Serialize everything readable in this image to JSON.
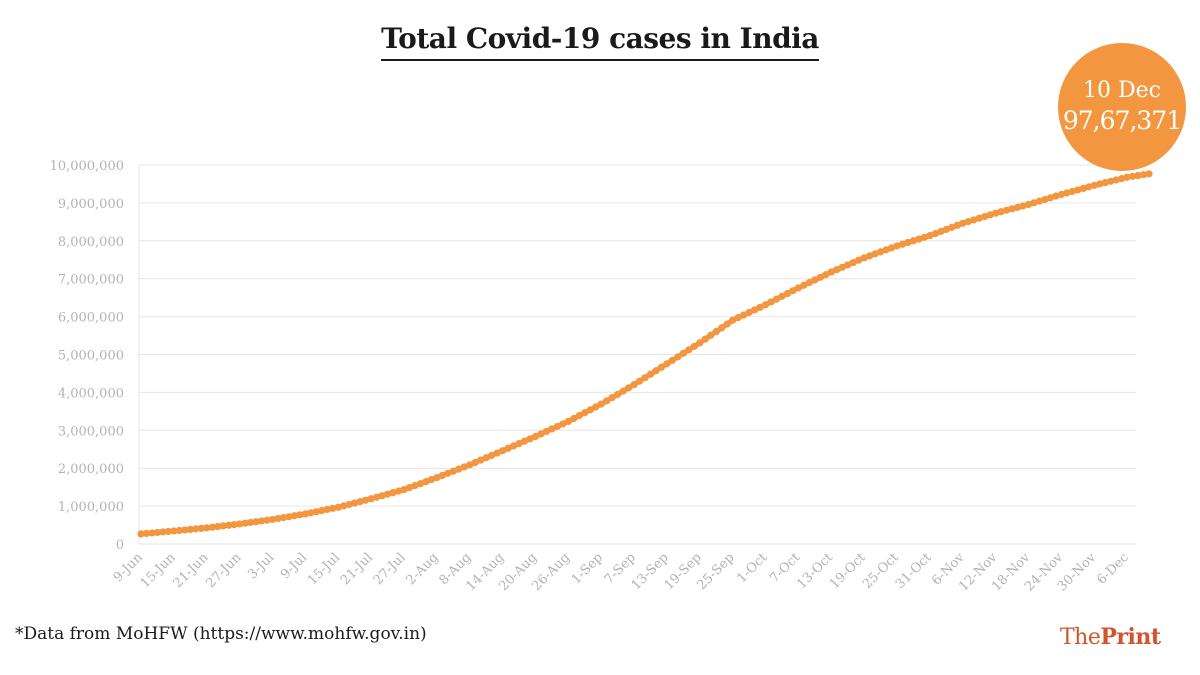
{
  "title": "Total Covid-19 cases in India",
  "badge": {
    "date": "10 Dec",
    "value": "97,67,371"
  },
  "footnote": "*Data from MoHFW (https://www.mohfw.gov.in)",
  "brand": {
    "prefix": "The",
    "name": "Print"
  },
  "colors": {
    "line": "#f2963f",
    "grid": "#e6e6e6",
    "axis_text": "#b3b3b3",
    "brand": "#d2542c"
  },
  "chart_data": {
    "type": "line",
    "title": "Total Covid-19 cases in India",
    "xlabel": "",
    "ylabel": "",
    "ylim": [
      0,
      10000000
    ],
    "y_ticks": [
      0,
      1000000,
      2000000,
      3000000,
      4000000,
      5000000,
      6000000,
      7000000,
      8000000,
      9000000,
      10000000
    ],
    "y_tick_labels": [
      "0",
      "1,000,000",
      "2,000,000",
      "3,000,000",
      "4,000,000",
      "5,000,000",
      "6,000,000",
      "7,000,000",
      "8,000,000",
      "9,000,000",
      "10,000,000"
    ],
    "x_tick_labels": [
      "9-Jun",
      "15-Jun",
      "21-Jun",
      "27-Jun",
      "3-Jul",
      "9-Jul",
      "15-Jul",
      "21-Jul",
      "27-Jul",
      "2-Aug",
      "8-Aug",
      "14-Aug",
      "20-Aug",
      "26-Aug",
      "1-Sep",
      "7-Sep",
      "13-Sep",
      "19-Sep",
      "25-Sep",
      "1-Oct",
      "7-Oct",
      "13-Oct",
      "19-Oct",
      "25-Oct",
      "31-Oct",
      "6-Nov",
      "12-Nov",
      "18-Nov",
      "24-Nov",
      "30-Nov",
      "6-Dec"
    ],
    "grid": true,
    "legend": "none",
    "markers": "dots",
    "x_start": "9-Jun",
    "x_end": "10-Dec",
    "series": [
      {
        "x": [
          "9-Jun",
          "15-Jun",
          "21-Jun",
          "27-Jun",
          "3-Jul",
          "9-Jul",
          "15-Jul",
          "21-Jul",
          "27-Jul",
          "2-Aug",
          "8-Aug",
          "14-Aug",
          "20-Aug",
          "26-Aug",
          "1-Sep",
          "7-Sep",
          "13-Sep",
          "19-Sep",
          "25-Sep",
          "1-Oct",
          "7-Oct",
          "13-Oct",
          "19-Oct",
          "25-Oct",
          "31-Oct",
          "6-Nov",
          "12-Nov",
          "18-Nov",
          "24-Nov",
          "30-Nov",
          "6-Dec",
          "10-Dec"
        ],
        "values": [
          266598,
          343091,
          426910,
          528859,
          648315,
          793802,
          968876,
          1193078,
          1435453,
          1750723,
          2088611,
          2461190,
          2836925,
          3234474,
          3691166,
          4204613,
          4754356,
          5308014,
          5903932,
          6312584,
          6757131,
          7175880,
          7550273,
          7864811,
          8137119,
          8462080,
          8728795,
          8958483,
          9222216,
          9462809,
          9677203,
          9767371
        ]
      }
    ]
  }
}
